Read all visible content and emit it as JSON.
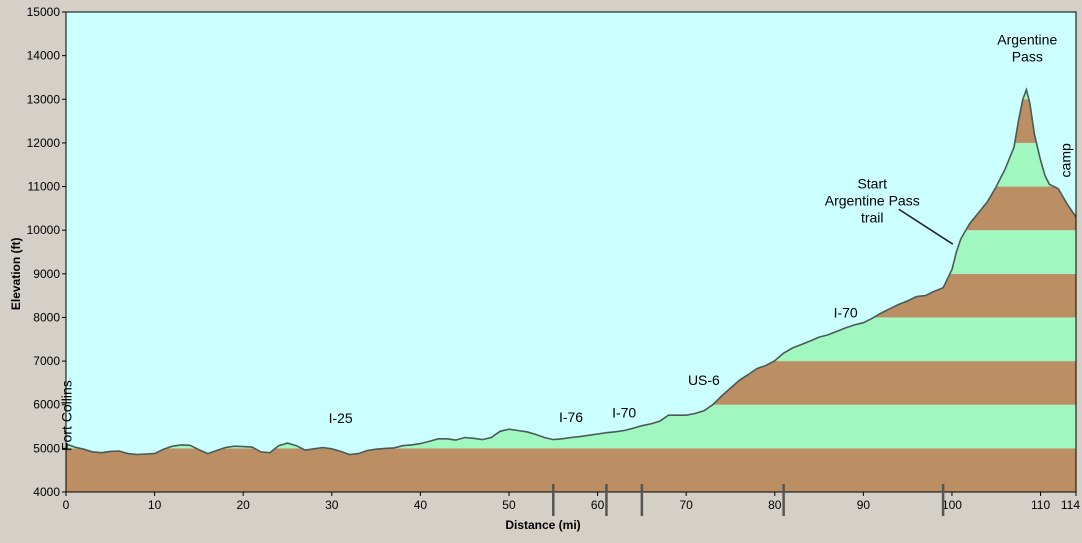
{
  "chart_data": {
    "type": "area",
    "xlabel": "Distance  (mi)",
    "ylabel": "Elevation (ft)",
    "xlim": [
      0,
      114
    ],
    "ylim": [
      4000,
      15000
    ],
    "xticks": [
      0,
      10,
      20,
      30,
      40,
      50,
      60,
      70,
      80,
      90,
      100,
      110,
      114
    ],
    "yticks": [
      4000,
      5000,
      6000,
      7000,
      8000,
      9000,
      10000,
      11000,
      12000,
      13000,
      14000,
      15000
    ],
    "grid": false,
    "colors": {
      "background": "#ccffff",
      "band_brown": "#bb8f63",
      "band_green": "#a0f8c0",
      "outline": "#4a5a55",
      "frame": "#d4d0c8"
    },
    "band_height": 1000,
    "segment_markers": [
      55,
      61,
      65,
      81,
      99
    ],
    "profile": [
      [
        0,
        5100
      ],
      [
        1,
        5030
      ],
      [
        2,
        4980
      ],
      [
        3,
        4920
      ],
      [
        4,
        4900
      ],
      [
        5,
        4930
      ],
      [
        6,
        4940
      ],
      [
        7,
        4880
      ],
      [
        8,
        4860
      ],
      [
        9,
        4870
      ],
      [
        10,
        4880
      ],
      [
        11,
        4980
      ],
      [
        12,
        5050
      ],
      [
        13,
        5080
      ],
      [
        14,
        5070
      ],
      [
        15,
        4970
      ],
      [
        16,
        4880
      ],
      [
        17,
        4950
      ],
      [
        18,
        5020
      ],
      [
        19,
        5050
      ],
      [
        20,
        5040
      ],
      [
        21,
        5030
      ],
      [
        22,
        4920
      ],
      [
        23,
        4900
      ],
      [
        24,
        5060
      ],
      [
        25,
        5120
      ],
      [
        26,
        5060
      ],
      [
        27,
        4960
      ],
      [
        28,
        4990
      ],
      [
        29,
        5020
      ],
      [
        30,
        4990
      ],
      [
        31,
        4930
      ],
      [
        32,
        4860
      ],
      [
        33,
        4880
      ],
      [
        34,
        4950
      ],
      [
        35,
        4980
      ],
      [
        36,
        5000
      ],
      [
        37,
        5010
      ],
      [
        38,
        5060
      ],
      [
        39,
        5080
      ],
      [
        40,
        5110
      ],
      [
        41,
        5160
      ],
      [
        42,
        5220
      ],
      [
        43,
        5220
      ],
      [
        44,
        5190
      ],
      [
        45,
        5250
      ],
      [
        46,
        5230
      ],
      [
        47,
        5200
      ],
      [
        48,
        5250
      ],
      [
        49,
        5390
      ],
      [
        50,
        5440
      ],
      [
        51,
        5410
      ],
      [
        52,
        5380
      ],
      [
        53,
        5320
      ],
      [
        54,
        5250
      ],
      [
        55,
        5200
      ],
      [
        56,
        5220
      ],
      [
        57,
        5250
      ],
      [
        58,
        5270
      ],
      [
        59,
        5300
      ],
      [
        60,
        5330
      ],
      [
        61,
        5360
      ],
      [
        62,
        5380
      ],
      [
        63,
        5410
      ],
      [
        64,
        5460
      ],
      [
        65,
        5520
      ],
      [
        66,
        5560
      ],
      [
        67,
        5620
      ],
      [
        68,
        5760
      ],
      [
        69,
        5760
      ],
      [
        70,
        5760
      ],
      [
        71,
        5800
      ],
      [
        72,
        5860
      ],
      [
        73,
        6000
      ],
      [
        74,
        6200
      ],
      [
        75,
        6380
      ],
      [
        76,
        6560
      ],
      [
        77,
        6690
      ],
      [
        78,
        6830
      ],
      [
        79,
        6900
      ],
      [
        80,
        7010
      ],
      [
        81,
        7180
      ],
      [
        82,
        7300
      ],
      [
        83,
        7380
      ],
      [
        84,
        7460
      ],
      [
        85,
        7550
      ],
      [
        86,
        7600
      ],
      [
        87,
        7680
      ],
      [
        88,
        7760
      ],
      [
        89,
        7830
      ],
      [
        90,
        7880
      ],
      [
        91,
        7980
      ],
      [
        92,
        8100
      ],
      [
        93,
        8200
      ],
      [
        94,
        8300
      ],
      [
        95,
        8380
      ],
      [
        96,
        8480
      ],
      [
        97,
        8500
      ],
      [
        98,
        8600
      ],
      [
        99,
        8680
      ],
      [
        100,
        9100
      ],
      [
        100.5,
        9500
      ],
      [
        101,
        9800
      ],
      [
        102,
        10150
      ],
      [
        103,
        10400
      ],
      [
        104,
        10650
      ],
      [
        105,
        11000
      ],
      [
        106,
        11400
      ],
      [
        107,
        11900
      ],
      [
        107.5,
        12500
      ],
      [
        108,
        13000
      ],
      [
        108.4,
        13220
      ],
      [
        108.8,
        12900
      ],
      [
        109.3,
        12200
      ],
      [
        110,
        11600
      ],
      [
        110.5,
        11250
      ],
      [
        111,
        11050
      ],
      [
        112,
        10950
      ],
      [
        113,
        10600
      ],
      [
        114,
        10300
      ]
    ],
    "annotations": [
      {
        "id": "fort-collins",
        "lines": [
          "Fort Collins"
        ],
        "x": 0.6,
        "y": 5750,
        "rotate": -90
      },
      {
        "id": "i-25",
        "lines": [
          "I-25"
        ],
        "x": 31,
        "y": 5580
      },
      {
        "id": "i-76",
        "lines": [
          "I-76"
        ],
        "x": 57,
        "y": 5600
      },
      {
        "id": "i-70-a",
        "lines": [
          "I-70"
        ],
        "x": 63,
        "y": 5710
      },
      {
        "id": "us-6",
        "lines": [
          "US-6"
        ],
        "x": 72,
        "y": 6450
      },
      {
        "id": "i-70-b",
        "lines": [
          "I-70"
        ],
        "x": 88,
        "y": 8000
      },
      {
        "id": "start-argentine-pass-trail",
        "lines": [
          "Start",
          "Argentine Pass",
          "trail"
        ],
        "x": 91,
        "y": 10950
      },
      {
        "id": "argentine-pass",
        "lines": [
          "Argentine",
          "Pass"
        ],
        "x": 108.5,
        "y": 14250
      },
      {
        "id": "camp",
        "lines": [
          "camp"
        ],
        "x": 113.4,
        "y": 11600,
        "rotate": -90
      }
    ],
    "leader": {
      "from": [
        94,
        10480
      ],
      "to": [
        100.1,
        9680
      ]
    }
  }
}
